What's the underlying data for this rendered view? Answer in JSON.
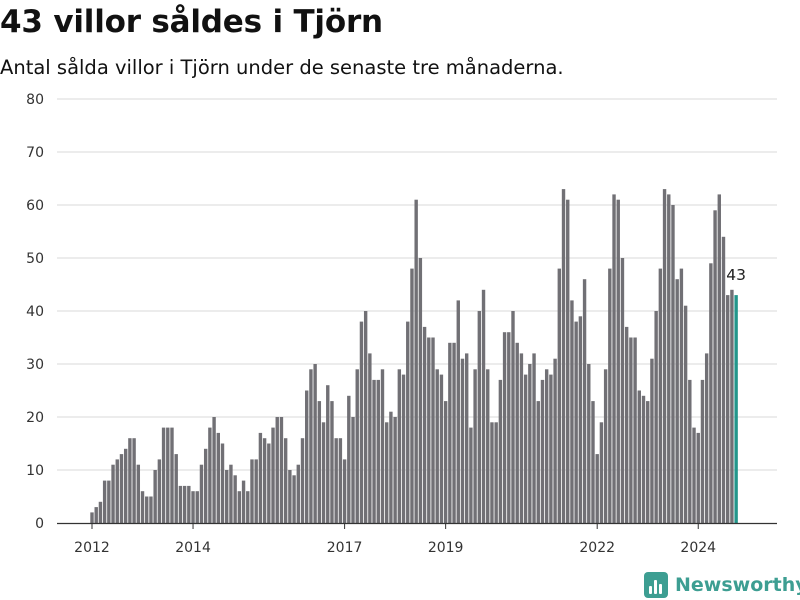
{
  "title": "43 villor såldes i Tjörn",
  "subtitle": "Antal sålda villor i Tjörn under de senaste tre månaderna.",
  "brand": "Newsworthy",
  "colors": {
    "bar": "#717075",
    "highlight": "#23968b",
    "grid": "#d9d9d9",
    "axis": "#333333",
    "brand": "#3d9e92"
  },
  "chart_data": {
    "type": "bar",
    "title": "43 villor såldes i Tjörn",
    "subtitle": "Antal sålda villor i Tjörn under de senaste tre månaderna.",
    "xlabel": "",
    "ylabel": "",
    "ylim": [
      0,
      80
    ],
    "yticks": [
      0,
      10,
      20,
      30,
      40,
      50,
      60,
      70,
      80
    ],
    "xticks": [
      "2012",
      "2014",
      "2017",
      "2019",
      "2022",
      "2024"
    ],
    "grid": true,
    "start_period": "2012-01",
    "period": "month",
    "values": [
      2,
      3,
      4,
      8,
      8,
      11,
      12,
      13,
      14,
      16,
      16,
      11,
      6,
      5,
      5,
      10,
      12,
      18,
      18,
      18,
      13,
      7,
      7,
      7,
      6,
      6,
      11,
      14,
      18,
      20,
      17,
      15,
      10,
      11,
      9,
      6,
      8,
      6,
      12,
      12,
      17,
      16,
      15,
      18,
      20,
      20,
      16,
      10,
      9,
      11,
      16,
      25,
      29,
      30,
      23,
      19,
      26,
      23,
      16,
      16,
      12,
      24,
      20,
      29,
      38,
      40,
      32,
      27,
      27,
      29,
      19,
      21,
      20,
      29,
      28,
      38,
      48,
      61,
      50,
      37,
      35,
      35,
      29,
      28,
      23,
      34,
      34,
      42,
      31,
      32,
      18,
      29,
      40,
      44,
      29,
      19,
      19,
      27,
      36,
      36,
      40,
      34,
      32,
      28,
      30,
      32,
      23,
      27,
      29,
      28,
      31,
      48,
      63,
      61,
      42,
      38,
      39,
      46,
      30,
      23,
      13,
      19,
      29,
      48,
      62,
      61,
      50,
      37,
      35,
      35,
      25,
      24,
      23,
      31,
      40,
      48,
      63,
      62,
      60,
      46,
      48,
      41,
      27,
      18,
      17,
      27,
      32,
      49,
      59,
      62,
      54,
      43,
      44,
      43
    ],
    "highlight_last": true,
    "annotations": [
      {
        "label": "43",
        "target": "last"
      }
    ]
  }
}
